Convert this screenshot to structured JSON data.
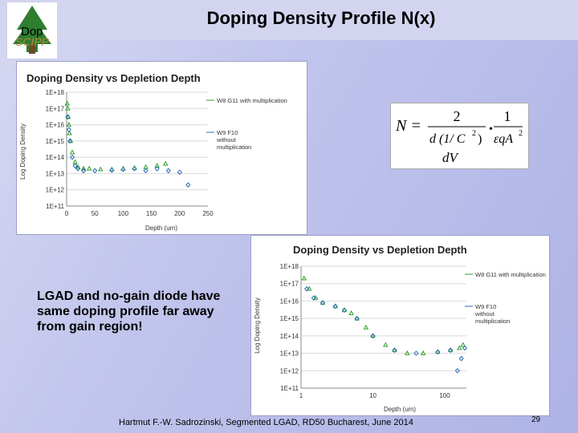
{
  "slide": {
    "title": "Doping Density Profile N(x)",
    "logo_text": "SCIPP",
    "logo_overlay": "Dop",
    "note": "LGAD and no-gain diode have same doping profile far away from gain region!",
    "footer": "Hartmut F.-W. Sadrozinski, Segmented LGAD, RD50 Bucharest, June 2014",
    "page_number": "29"
  },
  "formula": {
    "lhs": "N =",
    "num1": "2",
    "den1a": "d (1/ C",
    "den1exp": "2",
    "den1b": ")",
    "dV": "dV",
    "dot": "•",
    "num2": "1",
    "den2": "εqA",
    "den2exp": "2"
  },
  "colors": {
    "series1": "#2ca02c",
    "series2": "#2e6db4"
  },
  "chart_data": [
    {
      "type": "scatter",
      "title": "Doping Density vs Depletion Depth",
      "xlabel": "Depth (um)",
      "ylabel": "Log Doping Density",
      "xscale": "linear",
      "xlim": [
        0,
        250
      ],
      "x_ticks": [
        0,
        50,
        100,
        150,
        200,
        250
      ],
      "yscale": "log",
      "ylim": [
        100000000000.0,
        1e+18
      ],
      "y_ticks": [
        "1E+11",
        "1E+12",
        "1E+13",
        "1E+14",
        "1E+15",
        "1E+16",
        "1E+17",
        "1E+18"
      ],
      "legend_position": "right",
      "series": [
        {
          "name": "W8 G11 with multiplication",
          "marker": "triangle",
          "x": [
            1,
            2,
            3,
            4,
            5,
            7,
            10,
            15,
            20,
            30,
            40,
            60,
            80,
            100,
            120,
            140,
            160,
            175
          ],
          "y": [
            2e+17,
            1e+17,
            3e+16,
            1e+16,
            3000000000000000.0,
            1000000000000000.0,
            200000000000000.0,
            50000000000000.0,
            25000000000000.0,
            20000000000000.0,
            20000000000000.0,
            18000000000000.0,
            18000000000000.0,
            20000000000000.0,
            22000000000000.0,
            25000000000000.0,
            30000000000000.0,
            40000000000000.0
          ]
        },
        {
          "name": "W9 F10 without multiplication",
          "marker": "diamond",
          "x": [
            2,
            4,
            6,
            10,
            15,
            20,
            30,
            50,
            80,
            100,
            120,
            140,
            160,
            180,
            200,
            215
          ],
          "y": [
            3e+16,
            5000000000000000.0,
            1000000000000000.0,
            100000000000000.0,
            30000000000000.0,
            20000000000000.0,
            15000000000000.0,
            15000000000000.0,
            16000000000000.0,
            18000000000000.0,
            20000000000000.0,
            15000000000000.0,
            20000000000000.0,
            15000000000000.0,
            12000000000000.0,
            2000000000000.0
          ]
        }
      ]
    },
    {
      "type": "scatter",
      "title": "Doping Density vs Depletion Depth",
      "xlabel": "Depth (um)",
      "ylabel": "Log Doping Density",
      "xscale": "log",
      "xlim": [
        1,
        200
      ],
      "x_ticks": [
        1,
        10,
        100
      ],
      "yscale": "log",
      "ylim": [
        100000000000.0,
        1e+18
      ],
      "y_ticks": [
        "1E+11",
        "1E+12",
        "1E+13",
        "1E+14",
        "1E+15",
        "1E+16",
        "1E+17",
        "1E+18"
      ],
      "legend_position": "right",
      "series": [
        {
          "name": "W8 G11 with multiplication",
          "marker": "triangle",
          "x": [
            1.1,
            1.3,
            1.6,
            2,
            3,
            4,
            5,
            6,
            8,
            10,
            15,
            20,
            30,
            50,
            80,
            120,
            160,
            180
          ],
          "y": [
            2e+17,
            5e+16,
            1.5e+16,
            8000000000000000.0,
            5000000000000000.0,
            3000000000000000.0,
            2000000000000000.0,
            1000000000000000.0,
            300000000000000.0,
            100000000000000.0,
            30000000000000.0,
            15000000000000.0,
            10000000000000.0,
            10000000000000.0,
            12000000000000.0,
            15000000000000.0,
            20000000000000.0,
            30000000000000.0
          ]
        },
        {
          "name": "W9 F10 without multiplication",
          "marker": "diamond",
          "x": [
            1.2,
            1.5,
            2,
            3,
            4,
            6,
            10,
            20,
            40,
            80,
            120,
            150,
            170,
            190
          ],
          "y": [
            5e+16,
            1.5e+16,
            8000000000000000.0,
            5000000000000000.0,
            3000000000000000.0,
            1000000000000000.0,
            100000000000000.0,
            15000000000000.0,
            10000000000000.0,
            12000000000000.0,
            15000000000000.0,
            1000000000000.0,
            5000000000000.0,
            20000000000000.0
          ]
        }
      ]
    }
  ]
}
